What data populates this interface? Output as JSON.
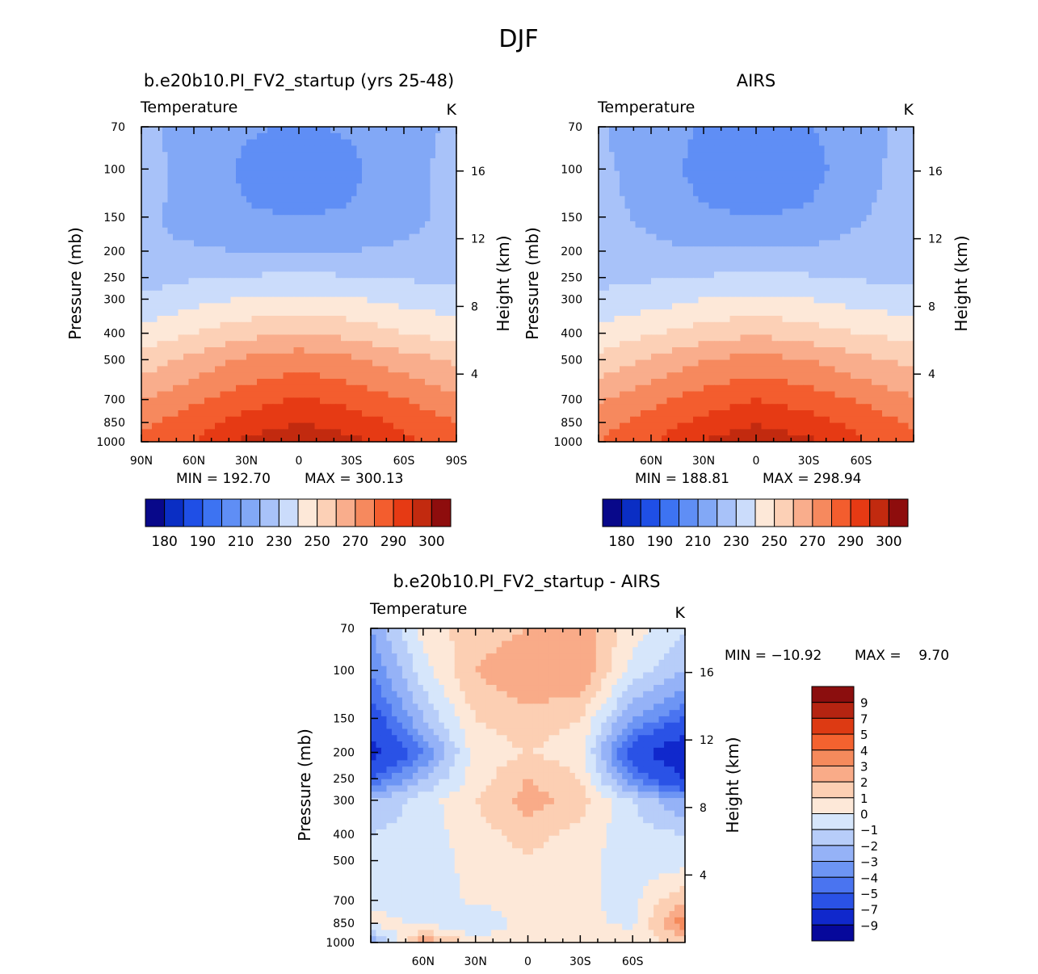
{
  "figure_title": "DJF",
  "colors": {
    "abs": [
      "#08088a",
      "#0a2ec4",
      "#1f4fe6",
      "#3d73f2",
      "#5f8ef5",
      "#82a8f6",
      "#a8c2f9",
      "#cbdcfb",
      "#fde8d8",
      "#fcd0b6",
      "#f9ad8c",
      "#f6895e",
      "#f35d2e",
      "#e63a14",
      "#c22a0f",
      "#8e0d0d"
    ],
    "diff": [
      "#06089b",
      "#1028cc",
      "#2a52e6",
      "#4a74f0",
      "#6d95f4",
      "#95b2f7",
      "#b7cdf9",
      "#d6e6fb",
      "#fde8d8",
      "#fccfb3",
      "#f9ab88",
      "#f58a5c",
      "#f4622f",
      "#dd3a13",
      "#b52411",
      "#8b0e0e"
    ]
  },
  "chart_data": [
    {
      "type": "contour",
      "title": "b.e20b10.PI_FV2_startup (yrs 25-48)",
      "subtitle_left": "Temperature",
      "subtitle_right": "K",
      "ylabel": "Pressure (mb)",
      "ylabel_right": "Height (km)",
      "y_ticks": [
        "70",
        "100",
        "150",
        "200",
        "250",
        "300",
        "400",
        "500",
        "700",
        "850",
        "1000"
      ],
      "y_right_ticks": [
        "16",
        "12",
        "8",
        "4"
      ],
      "x_ticks": [
        "90N",
        "60N",
        "30N",
        "0",
        "30S",
        "60S",
        "90S"
      ],
      "min_label": "MIN = 192.70",
      "max_label": "MAX = 300.13",
      "colorbar_labels": [
        "180",
        "190",
        "210",
        "230",
        "250",
        "270",
        "290",
        "300"
      ],
      "levels": [
        200,
        210,
        220,
        230,
        240,
        250,
        260,
        270,
        280,
        290,
        300
      ],
      "grid_lat": [
        90,
        60,
        30,
        0,
        -30,
        -60,
        -90
      ],
      "grid_p": [
        70,
        100,
        150,
        200,
        250,
        300,
        400,
        500,
        700,
        850,
        1000
      ],
      "values": [
        [
          213,
          205,
          201,
          199,
          201,
          206,
          212
        ],
        [
          214,
          206,
          198,
          196,
          198,
          207,
          213
        ],
        [
          212,
          207,
          201,
          200,
          201,
          207,
          213
        ],
        [
          211,
          211,
          210,
          210,
          210,
          212,
          214
        ],
        [
          216,
          219,
          221,
          222,
          221,
          219,
          218
        ],
        [
          222,
          227,
          231,
          233,
          231,
          227,
          225
        ],
        [
          233,
          240,
          247,
          251,
          247,
          240,
          236
        ],
        [
          244,
          254,
          262,
          266,
          262,
          255,
          248
        ],
        [
          260,
          268,
          276,
          281,
          277,
          270,
          262
        ],
        [
          268,
          276,
          284,
          290,
          285,
          278,
          270
        ],
        [
          272,
          280,
          292,
          299,
          293,
          282,
          274
        ]
      ]
    },
    {
      "type": "contour",
      "title": "AIRS",
      "subtitle_left": "Temperature",
      "subtitle_right": "K",
      "ylabel": "Pressure (mb)",
      "ylabel_right": "Height (km)",
      "y_ticks": [
        "70",
        "100",
        "150",
        "200",
        "250",
        "300",
        "400",
        "500",
        "700",
        "850",
        "1000"
      ],
      "y_right_ticks": [
        "16",
        "12",
        "8",
        "4"
      ],
      "x_ticks": [
        "60N",
        "30N",
        "0",
        "30S",
        "60S"
      ],
      "min_label": "MIN = 188.81",
      "max_label": "MAX = 298.94",
      "colorbar_labels": [
        "180",
        "190",
        "210",
        "230",
        "250",
        "270",
        "290",
        "300"
      ],
      "levels": [
        200,
        210,
        220,
        230,
        240,
        250,
        260,
        270,
        280,
        290,
        300
      ],
      "grid_lat": [
        90,
        60,
        30,
        0,
        -30,
        -60,
        -90
      ],
      "grid_p": [
        70,
        100,
        150,
        200,
        250,
        300,
        400,
        500,
        700,
        850,
        1000
      ],
      "values": [
        [
          211,
          205,
          199,
          198,
          199,
          207,
          213
        ],
        [
          212,
          206,
          196,
          192,
          196,
          207,
          214
        ],
        [
          213,
          208,
          202,
          200,
          202,
          209,
          215
        ],
        [
          214,
          212,
          211,
          211,
          212,
          214,
          216
        ],
        [
          217,
          219,
          221,
          222,
          221,
          219,
          218
        ],
        [
          223,
          226,
          230,
          233,
          230,
          226,
          225
        ],
        [
          233,
          239,
          245,
          249,
          245,
          240,
          236
        ],
        [
          243,
          252,
          260,
          264,
          260,
          253,
          247
        ],
        [
          259,
          267,
          275,
          280,
          276,
          269,
          261
        ],
        [
          266,
          275,
          283,
          289,
          284,
          277,
          268
        ],
        [
          270,
          279,
          291,
          297,
          292,
          281,
          272
        ]
      ]
    },
    {
      "type": "contour",
      "title": "b.e20b10.PI_FV2_startup - AIRS",
      "subtitle_left": "Temperature",
      "subtitle_right": "K",
      "ylabel": "Pressure (mb)",
      "ylabel_right": "Height (km)",
      "y_ticks": [
        "70",
        "100",
        "150",
        "200",
        "250",
        "300",
        "400",
        "500",
        "700",
        "850",
        "1000"
      ],
      "y_right_ticks": [
        "16",
        "12",
        "8",
        "4"
      ],
      "x_ticks": [
        "60N",
        "30N",
        "0",
        "30S",
        "60S"
      ],
      "min_label": "MIN = −10.92",
      "max_label": "MAX =    9.70",
      "colorbar_labels": [
        "9",
        "7",
        "5",
        "4",
        "3",
        "2",
        "1",
        "0",
        "−1",
        "−2",
        "−3",
        "−4",
        "−5",
        "−7",
        "−9"
      ],
      "levels": [
        -9,
        -7,
        -5,
        -4,
        -3,
        -2,
        -1,
        0,
        1,
        2,
        3,
        4,
        5,
        7,
        9
      ],
      "grid_lat": [
        90,
        60,
        30,
        0,
        -30,
        -60,
        -90
      ],
      "grid_p": [
        70,
        100,
        150,
        200,
        250,
        300,
        400,
        500,
        700,
        850,
        1000
      ],
      "values": [
        [
          -3,
          0.5,
          1.5,
          2,
          2.5,
          0.5,
          -1
        ],
        [
          -4,
          -0.5,
          2,
          3,
          3,
          -0.5,
          -2
        ],
        [
          -6,
          -2,
          1,
          1.5,
          1,
          -3,
          -5
        ],
        [
          -8,
          -4,
          0.5,
          1,
          0.5,
          -6,
          -9
        ],
        [
          -5,
          -2,
          0.5,
          2,
          1,
          -4,
          -7
        ],
        [
          -2,
          -0.5,
          1,
          2.5,
          1.5,
          -1,
          -3
        ],
        [
          -1,
          -0.5,
          0.5,
          1.5,
          0.5,
          -0.5,
          -1
        ],
        [
          -0.5,
          -0.5,
          0.3,
          0.8,
          0.3,
          -0.5,
          -0.5
        ],
        [
          -0.3,
          -0.5,
          0.2,
          0.5,
          0.2,
          -0.3,
          2
        ],
        [
          0.5,
          -0.2,
          -1,
          0.5,
          0.2,
          -0.2,
          4
        ],
        [
          -3,
          3,
          0.5,
          0.5,
          0.5,
          0.5,
          1
        ]
      ]
    }
  ]
}
